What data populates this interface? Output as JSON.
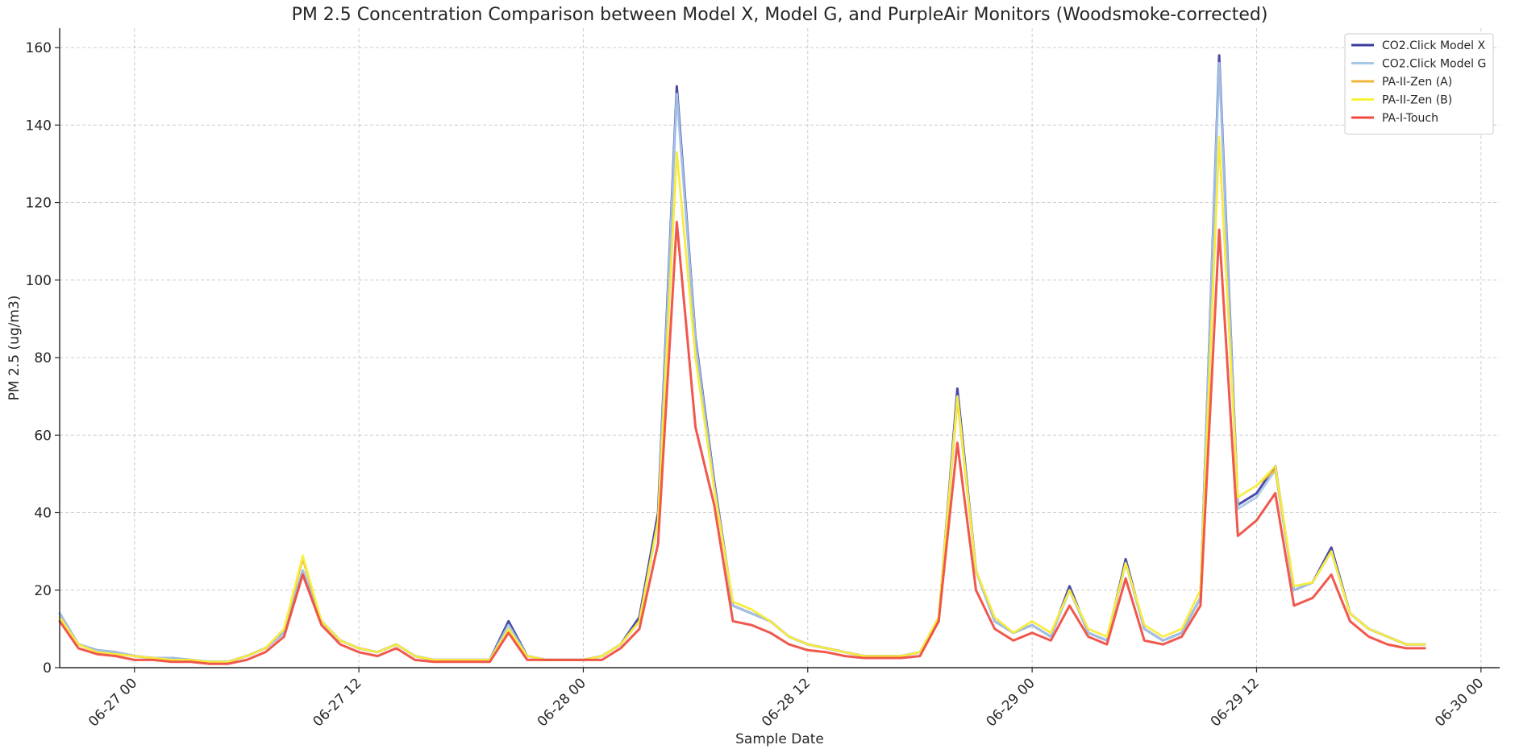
{
  "chart_data": {
    "type": "line",
    "title": "PM 2.5 Concentration Comparison between Model X, Model G, and PurpleAir Monitors (Woodsmoke-corrected)",
    "xlabel": "Sample Date",
    "ylabel": "PM 2.5 (ug/m3)",
    "x_axis_type": "datetime",
    "xlim": [
      "06-26 20:00",
      "06-30 01:00"
    ],
    "ylim": [
      0,
      165
    ],
    "x_ticks": [
      "06-27 00",
      "06-27 12",
      "06-28 00",
      "06-28 12",
      "06-29 00",
      "06-29 12",
      "06-30 00"
    ],
    "y_ticks": [
      0,
      20,
      40,
      60,
      80,
      100,
      120,
      140,
      160
    ],
    "grid": true,
    "legend_position": "top-right",
    "x": [
      "06-26 20:00",
      "06-26 21:00",
      "06-26 22:00",
      "06-26 23:00",
      "06-27 00:00",
      "06-27 01:00",
      "06-27 02:00",
      "06-27 03:00",
      "06-27 04:00",
      "06-27 05:00",
      "06-27 06:00",
      "06-27 07:00",
      "06-27 08:00",
      "06-27 09:00",
      "06-27 10:00",
      "06-27 11:00",
      "06-27 12:00",
      "06-27 13:00",
      "06-27 14:00",
      "06-27 15:00",
      "06-27 16:00",
      "06-27 17:00",
      "06-27 18:00",
      "06-27 19:00",
      "06-27 20:00",
      "06-27 21:00",
      "06-27 22:00",
      "06-27 23:00",
      "06-28 00:00",
      "06-28 01:00",
      "06-28 02:00",
      "06-28 03:00",
      "06-28 04:00",
      "06-28 05:00",
      "06-28 06:00",
      "06-28 07:00",
      "06-28 08:00",
      "06-28 09:00",
      "06-28 10:00",
      "06-28 11:00",
      "06-28 12:00",
      "06-28 13:00",
      "06-28 14:00",
      "06-28 15:00",
      "06-28 16:00",
      "06-28 17:00",
      "06-28 18:00",
      "06-28 19:00",
      "06-28 20:00",
      "06-28 21:00",
      "06-28 22:00",
      "06-28 23:00",
      "06-29 00:00",
      "06-29 01:00",
      "06-29 02:00",
      "06-29 03:00",
      "06-29 04:00",
      "06-29 05:00",
      "06-29 06:00",
      "06-29 07:00",
      "06-29 08:00",
      "06-29 09:00",
      "06-29 10:00",
      "06-29 11:00",
      "06-29 12:00",
      "06-29 13:00",
      "06-29 14:00",
      "06-29 15:00",
      "06-29 16:00",
      "06-29 17:00",
      "06-29 18:00",
      "06-29 19:00",
      "06-29 20:00",
      "06-29 21:00"
    ],
    "series": [
      {
        "name": "CO2.Click Model X",
        "color": "#3b3b9e",
        "width": 3,
        "values": [
          14,
          6,
          4.5,
          4,
          3,
          2.5,
          2.5,
          2,
          1.5,
          1.5,
          3,
          5,
          9,
          25,
          12,
          7,
          5,
          4,
          6,
          3,
          2,
          2,
          2,
          2,
          12,
          3,
          2,
          2,
          2,
          3,
          6,
          13,
          40,
          150,
          85,
          48,
          16,
          14,
          12,
          8,
          6,
          5,
          4,
          3,
          3,
          3,
          4,
          12,
          72,
          25,
          12,
          9,
          11,
          8,
          21,
          9,
          7,
          28,
          10,
          7,
          9,
          18,
          158,
          42,
          45,
          52,
          20,
          22,
          31,
          14,
          10,
          8,
          6,
          6
        ]
      },
      {
        "name": "CO2.Click Model G",
        "color": "#a8c8e8",
        "width": 3,
        "values": [
          14,
          6,
          4.5,
          4,
          3,
          2.5,
          2.5,
          2,
          1.5,
          1.5,
          3,
          5,
          9,
          25,
          12,
          7,
          5,
          4,
          6,
          3,
          2,
          2,
          2,
          2,
          11,
          3,
          2,
          2,
          2,
          3,
          6,
          12,
          38,
          148,
          84,
          47,
          16,
          14,
          12,
          8,
          6,
          5,
          4,
          3,
          3,
          3,
          4,
          12,
          70,
          25,
          12,
          9,
          11,
          8,
          20,
          9,
          7,
          27,
          10,
          7,
          9,
          18,
          156,
          41,
          44,
          51,
          20,
          22,
          30,
          14,
          10,
          8,
          6,
          6
        ]
      },
      {
        "name": "PA-II-Zen (A)",
        "color": "#f2b53a",
        "width": 2.5,
        "values": [
          13,
          6,
          4,
          3.5,
          3,
          2.5,
          2,
          2,
          1.5,
          1.5,
          3,
          5,
          10,
          28,
          12,
          7,
          5,
          4,
          6,
          3,
          2,
          2,
          2,
          2,
          10,
          3,
          2,
          2,
          2,
          3,
          6,
          12,
          38,
          133,
          80,
          46,
          17,
          15,
          12,
          8,
          6,
          5,
          4,
          3,
          3,
          3,
          4,
          13,
          69,
          25,
          13,
          9,
          12,
          9,
          20,
          10,
          8,
          27,
          11,
          8,
          10,
          20,
          136,
          44,
          47,
          51,
          21,
          22,
          30,
          14,
          10,
          8,
          6,
          6
        ]
      },
      {
        "name": "PA-II-Zen (B)",
        "color": "#f7f23a",
        "width": 2.5,
        "values": [
          13,
          6,
          4,
          3.5,
          3,
          2.5,
          2,
          2,
          1.5,
          1.5,
          3,
          5,
          10,
          29,
          12,
          7,
          5,
          4,
          6,
          3,
          2,
          2,
          2,
          2,
          10,
          3,
          2,
          2,
          2,
          3,
          6,
          12,
          38,
          133,
          80,
          46,
          17,
          15,
          12,
          8,
          6,
          5,
          4,
          3,
          3,
          3,
          4,
          13,
          70,
          25,
          13,
          9,
          12,
          9,
          20,
          10,
          8,
          27,
          11,
          8,
          10,
          20,
          137,
          44,
          47,
          52,
          21,
          22,
          30,
          14,
          10,
          8,
          6,
          6
        ]
      },
      {
        "name": "PA-I-Touch",
        "color": "#f04a3e",
        "width": 3,
        "values": [
          12,
          5,
          3.5,
          3,
          2,
          2,
          1.5,
          1.5,
          1,
          1,
          2,
          4,
          8,
          24,
          11,
          6,
          4,
          3,
          5,
          2,
          1.5,
          1.5,
          1.5,
          1.5,
          9,
          2,
          2,
          2,
          2,
          2,
          5,
          10,
          32,
          115,
          62,
          42,
          12,
          11,
          9,
          6,
          4.5,
          4,
          3,
          2.5,
          2.5,
          2.5,
          3,
          12,
          58,
          20,
          10,
          7,
          9,
          7,
          16,
          8,
          6,
          23,
          7,
          6,
          8,
          16,
          113,
          34,
          38,
          45,
          16,
          18,
          24,
          12,
          8,
          6,
          5,
          5
        ]
      }
    ]
  }
}
